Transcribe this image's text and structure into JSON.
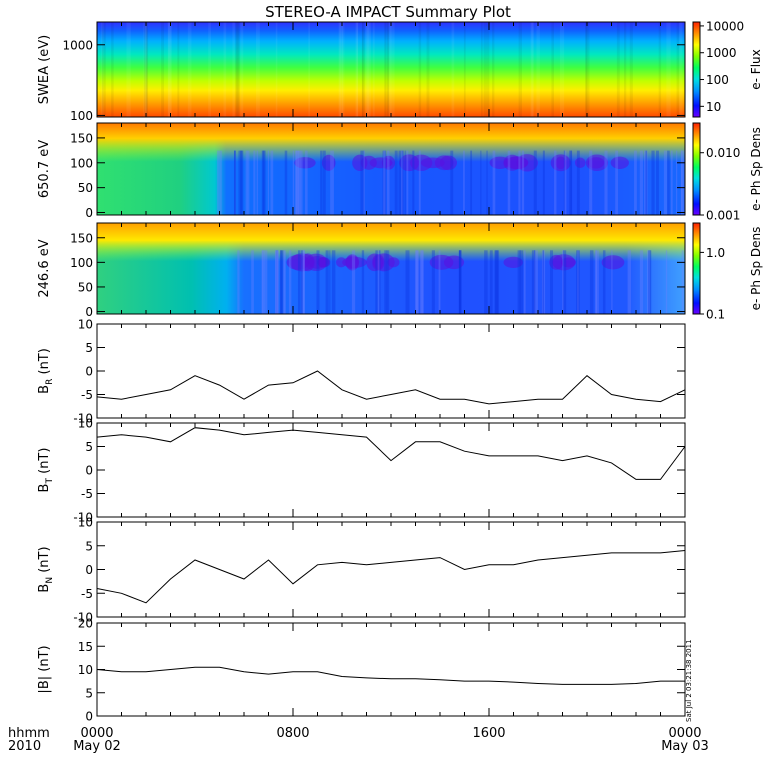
{
  "title": "STEREO-A IMPACT Summary Plot",
  "bottom_labels": {
    "hhmm": "hhmm",
    "year": "2010"
  },
  "x_ticks": [
    {
      "label": "0000",
      "sub": "May 02"
    },
    {
      "label": "0800",
      "sub": ""
    },
    {
      "label": "1600",
      "sub": ""
    },
    {
      "label": "0000",
      "sub": "May 03"
    }
  ],
  "side_stamp": "Sat Jul  2 03:21:38 2011",
  "colors": {
    "axis": "#000000",
    "line": "#000000",
    "background": "#ffffff"
  },
  "chart_data": [
    {
      "type": "heatmap",
      "ylabel": "SWEA (eV)",
      "yscale": "log",
      "ylim": [
        95,
        2100
      ],
      "yticks": [
        {
          "value": 100,
          "label": "100"
        },
        {
          "value": 1000,
          "label": "1000"
        }
      ],
      "colorbar": {
        "label": "e- Flux",
        "scale": "log",
        "range": [
          4,
          14000
        ],
        "ticks": [
          {
            "value": 10,
            "label": "10"
          },
          {
            "value": 100,
            "label": "100"
          },
          {
            "value": 1000,
            "label": "1000"
          },
          {
            "value": 10000,
            "label": "10000"
          }
        ]
      }
    },
    {
      "type": "heatmap",
      "ylabel": "650.7 eV",
      "ylim": [
        -5,
        180
      ],
      "yticks": [
        {
          "value": 0,
          "label": "0"
        },
        {
          "value": 50,
          "label": "50"
        },
        {
          "value": 100,
          "label": "100"
        },
        {
          "value": 150,
          "label": "150"
        }
      ],
      "colorbar": {
        "label": "e- Ph Sp Dens",
        "scale": "log",
        "range": [
          0.001,
          0.03
        ],
        "ticks": [
          {
            "value": 0.001,
            "label": "0.001"
          },
          {
            "value": 0.01,
            "label": "0.010"
          }
        ]
      }
    },
    {
      "type": "heatmap",
      "ylabel": "246.6 eV",
      "ylim": [
        -5,
        180
      ],
      "yticks": [
        {
          "value": 0,
          "label": "0"
        },
        {
          "value": 50,
          "label": "50"
        },
        {
          "value": 100,
          "label": "100"
        },
        {
          "value": 150,
          "label": "150"
        }
      ],
      "colorbar": {
        "label": "e- Ph Sp Dens",
        "scale": "log",
        "range": [
          0.1,
          3.0
        ],
        "ticks": [
          {
            "value": 0.1,
            "label": "0.1"
          },
          {
            "value": 1.0,
            "label": "1.0"
          }
        ]
      }
    },
    {
      "type": "line",
      "ylabel": "B",
      "ysub": "R",
      "yunit": "(nT)",
      "ylim": [
        -10,
        10
      ],
      "yticks": [
        {
          "value": -10,
          "label": "-10"
        },
        {
          "value": -5,
          "label": "-5"
        },
        {
          "value": 0,
          "label": "0"
        },
        {
          "value": 5,
          "label": "5"
        },
        {
          "value": 10,
          "label": "10"
        }
      ],
      "x": [
        0,
        1,
        2,
        3,
        4,
        5,
        6,
        7,
        8,
        9,
        10,
        11,
        12,
        13,
        14,
        15,
        16,
        17,
        18,
        19,
        20,
        21,
        22,
        23,
        24
      ],
      "values": [
        -5.5,
        -6,
        -5,
        -4,
        -1,
        -3,
        -6,
        -3,
        -2.5,
        0,
        -4,
        -6,
        -5,
        -4,
        -6,
        -6,
        -7,
        -6.5,
        -6,
        -6,
        -1,
        -5,
        -6,
        -6.5,
        -4
      ]
    },
    {
      "type": "line",
      "ylabel": "B",
      "ysub": "T",
      "yunit": "(nT)",
      "ylim": [
        -10,
        10
      ],
      "yticks": [
        {
          "value": -10,
          "label": "-10"
        },
        {
          "value": -5,
          "label": "-5"
        },
        {
          "value": 0,
          "label": "0"
        },
        {
          "value": 5,
          "label": "5"
        },
        {
          "value": 10,
          "label": "10"
        }
      ],
      "x": [
        0,
        1,
        2,
        3,
        4,
        5,
        6,
        7,
        8,
        9,
        10,
        11,
        12,
        13,
        14,
        15,
        16,
        17,
        18,
        19,
        20,
        21,
        22,
        23,
        24
      ],
      "values": [
        7,
        7.5,
        7,
        6,
        9,
        8.5,
        7.5,
        8,
        8.5,
        8,
        7.5,
        7,
        2,
        6,
        6,
        4,
        3,
        3,
        3,
        2,
        3,
        1.5,
        -2,
        -2,
        5
      ]
    },
    {
      "type": "line",
      "ylabel": "B",
      "ysub": "N",
      "yunit": "(nT)",
      "ylim": [
        -10,
        10
      ],
      "yticks": [
        {
          "value": -10,
          "label": "-10"
        },
        {
          "value": -5,
          "label": "-5"
        },
        {
          "value": 0,
          "label": "0"
        },
        {
          "value": 5,
          "label": "5"
        },
        {
          "value": 10,
          "label": "10"
        }
      ],
      "x": [
        0,
        1,
        2,
        3,
        4,
        5,
        6,
        7,
        8,
        9,
        10,
        11,
        12,
        13,
        14,
        15,
        16,
        17,
        18,
        19,
        20,
        21,
        22,
        23,
        24
      ],
      "values": [
        -4,
        -5,
        -7,
        -2,
        2,
        0,
        -2,
        2,
        -3,
        1,
        1.5,
        1,
        1.5,
        2,
        2.5,
        0,
        1,
        1,
        2,
        2.5,
        3,
        3.5,
        3.5,
        3.5,
        4
      ]
    },
    {
      "type": "line",
      "ylabel": "|B| (nT)",
      "ylim": [
        0,
        20
      ],
      "yticks": [
        {
          "value": 0,
          "label": "0"
        },
        {
          "value": 5,
          "label": "5"
        },
        {
          "value": 10,
          "label": "10"
        },
        {
          "value": 15,
          "label": "15"
        },
        {
          "value": 20,
          "label": "20"
        }
      ],
      "x": [
        0,
        1,
        2,
        3,
        4,
        5,
        6,
        7,
        8,
        9,
        10,
        11,
        12,
        13,
        14,
        15,
        16,
        17,
        18,
        19,
        20,
        21,
        22,
        23,
        24
      ],
      "values": [
        10,
        9.5,
        9.5,
        10,
        10.5,
        10.5,
        9.5,
        9,
        9.5,
        9.5,
        8.5,
        8.2,
        8,
        8,
        7.8,
        7.5,
        7.5,
        7.3,
        7,
        6.8,
        6.8,
        6.8,
        7,
        7.5,
        7.5
      ]
    }
  ]
}
